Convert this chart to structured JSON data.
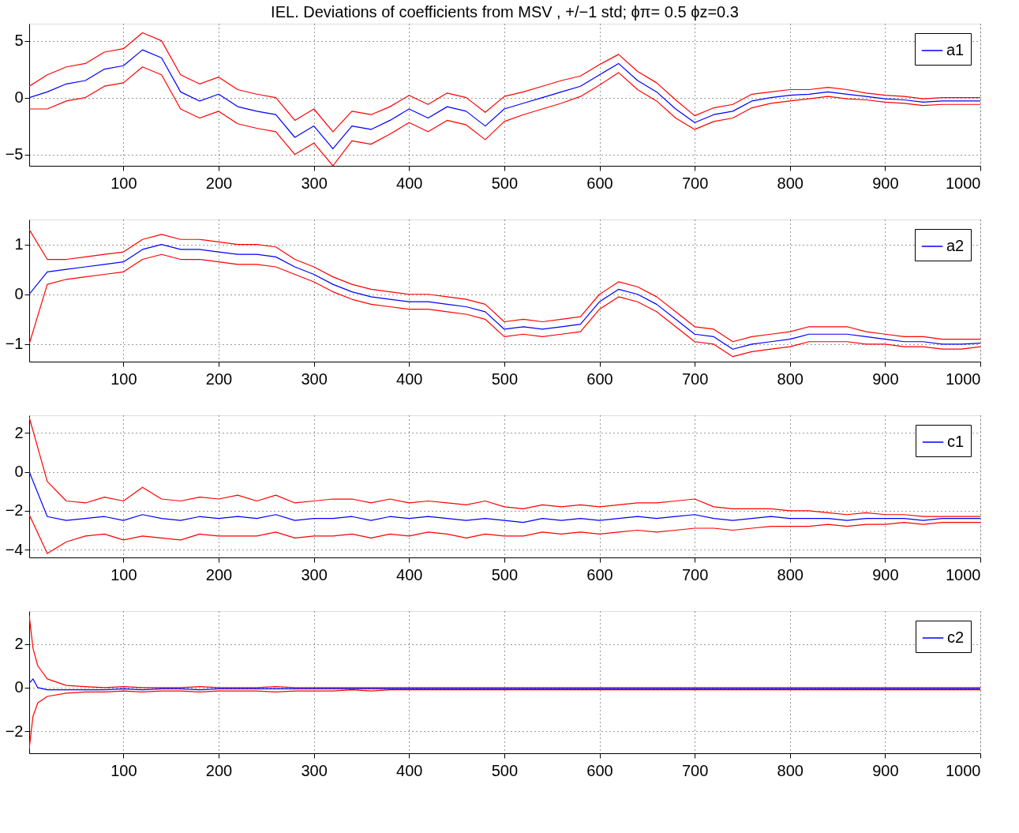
{
  "chart_data": [
    {
      "type": "line",
      "title": "IEL. Deviations of coefficients from MSV , +/−1 std; ϕπ= 0.5 ϕz=0.3",
      "x": [
        1,
        20,
        40,
        60,
        80,
        100,
        120,
        140,
        160,
        180,
        200,
        220,
        240,
        260,
        280,
        300,
        320,
        340,
        360,
        380,
        400,
        420,
        440,
        460,
        480,
        500,
        520,
        540,
        560,
        580,
        600,
        620,
        640,
        660,
        680,
        700,
        720,
        740,
        760,
        780,
        800,
        820,
        840,
        860,
        880,
        900,
        920,
        940,
        960,
        980,
        1000
      ],
      "xlim": [
        1,
        1000
      ],
      "xticks": [
        100,
        200,
        300,
        400,
        500,
        600,
        700,
        800,
        900,
        1000
      ],
      "ylim": [
        -6,
        6.5
      ],
      "yticks": [
        -5,
        0,
        5
      ],
      "grid": true,
      "legend": "top right",
      "line_style": "solid",
      "marker": "none",
      "series": [
        {
          "color": "#ff0000",
          "values": [
            1,
            2,
            2.7,
            3,
            4,
            4.3,
            5.7,
            5,
            2,
            1.2,
            1.8,
            0.7,
            0.3,
            0,
            -2,
            -1,
            -3,
            -1.2,
            -1.5,
            -0.8,
            0.2,
            -0.6,
            0.4,
            0,
            -1.3,
            0.1,
            0.5,
            1,
            1.5,
            1.9,
            2.9,
            3.8,
            2.3,
            1.3,
            -0.2,
            -1.6,
            -0.9,
            -0.6,
            0.3,
            0.5,
            0.7,
            0.7,
            0.9,
            0.7,
            0.4,
            0.2,
            0.1,
            -0.1,
            0,
            0,
            0
          ]
        },
        {
          "color": "#ff0000",
          "values": [
            -1,
            -1,
            -0.3,
            0,
            1,
            1.3,
            2.7,
            2,
            -1,
            -1.8,
            -1.2,
            -2.3,
            -2.7,
            -3,
            -5,
            -4,
            -6,
            -3.8,
            -4.1,
            -3.2,
            -2.2,
            -3,
            -2,
            -2.4,
            -3.7,
            -2.1,
            -1.5,
            -1,
            -0.5,
            0.1,
            1.1,
            2.2,
            0.7,
            -0.3,
            -1.8,
            -2.8,
            -2.1,
            -1.8,
            -0.9,
            -0.5,
            -0.3,
            -0.1,
            0.1,
            -0.1,
            -0.2,
            -0.4,
            -0.5,
            -0.7,
            -0.6,
            -0.6,
            -0.6
          ]
        },
        {
          "name": "a1",
          "color": "#0000ff",
          "values": [
            0,
            0.5,
            1.2,
            1.5,
            2.5,
            2.8,
            4.2,
            3.5,
            0.5,
            -0.3,
            0.3,
            -0.8,
            -1.2,
            -1.5,
            -3.5,
            -2.5,
            -4.5,
            -2.5,
            -2.8,
            -2.0,
            -1.0,
            -1.8,
            -0.8,
            -1.2,
            -2.5,
            -1.0,
            -0.5,
            0,
            0.5,
            1.0,
            2.0,
            3.0,
            1.5,
            0.5,
            -1.0,
            -2.2,
            -1.5,
            -1.2,
            -0.3,
            0,
            0.2,
            0.3,
            0.5,
            0.3,
            0.1,
            -0.1,
            -0.2,
            -0.4,
            -0.3,
            -0.3,
            -0.3
          ]
        }
      ]
    },
    {
      "type": "line",
      "x": [
        1,
        20,
        40,
        60,
        80,
        100,
        120,
        140,
        160,
        180,
        200,
        220,
        240,
        260,
        280,
        300,
        320,
        340,
        360,
        380,
        400,
        420,
        440,
        460,
        480,
        500,
        520,
        540,
        560,
        580,
        600,
        620,
        640,
        660,
        680,
        700,
        720,
        740,
        760,
        780,
        800,
        820,
        840,
        860,
        880,
        900,
        920,
        940,
        960,
        980,
        1000
      ],
      "xlim": [
        1,
        1000
      ],
      "xticks": [
        100,
        200,
        300,
        400,
        500,
        600,
        700,
        800,
        900,
        1000
      ],
      "ylim": [
        -1.35,
        1.5
      ],
      "yticks": [
        -1,
        0,
        1
      ],
      "grid": true,
      "legend": "top right",
      "line_style": "solid",
      "marker": "none",
      "series": [
        {
          "color": "#ff0000",
          "values": [
            1.3,
            0.7,
            0.7,
            0.75,
            0.8,
            0.85,
            1.1,
            1.2,
            1.1,
            1.1,
            1.05,
            1.0,
            1.0,
            0.95,
            0.7,
            0.55,
            0.35,
            0.2,
            0.1,
            0.05,
            0,
            0,
            -0.05,
            -0.1,
            -0.2,
            -0.55,
            -0.5,
            -0.55,
            -0.5,
            -0.45,
            0,
            0.25,
            0.15,
            -0.05,
            -0.35,
            -0.65,
            -0.7,
            -0.95,
            -0.85,
            -0.8,
            -0.75,
            -0.65,
            -0.65,
            -0.65,
            -0.75,
            -0.8,
            -0.85,
            -0.85,
            -0.9,
            -0.9,
            -0.9
          ]
        },
        {
          "color": "#ff0000",
          "values": [
            -1.0,
            0.2,
            0.3,
            0.35,
            0.4,
            0.45,
            0.7,
            0.8,
            0.7,
            0.7,
            0.65,
            0.6,
            0.6,
            0.55,
            0.4,
            0.25,
            0.05,
            -0.1,
            -0.2,
            -0.25,
            -0.3,
            -0.3,
            -0.35,
            -0.4,
            -0.5,
            -0.85,
            -0.8,
            -0.85,
            -0.8,
            -0.75,
            -0.3,
            -0.05,
            -0.15,
            -0.35,
            -0.65,
            -0.95,
            -1.0,
            -1.25,
            -1.15,
            -1.1,
            -1.05,
            -0.95,
            -0.95,
            -0.95,
            -1.0,
            -1.0,
            -1.05,
            -1.05,
            -1.1,
            -1.1,
            -1.05
          ]
        },
        {
          "name": "a2",
          "color": "#0000ff",
          "values": [
            0,
            0.45,
            0.5,
            0.55,
            0.6,
            0.65,
            0.9,
            1.0,
            0.9,
            0.9,
            0.85,
            0.8,
            0.8,
            0.75,
            0.55,
            0.4,
            0.2,
            0.05,
            -0.05,
            -0.1,
            -0.15,
            -0.15,
            -0.2,
            -0.25,
            -0.35,
            -0.7,
            -0.65,
            -0.7,
            -0.65,
            -0.6,
            -0.15,
            0.1,
            0.0,
            -0.2,
            -0.5,
            -0.8,
            -0.85,
            -1.1,
            -1.0,
            -0.95,
            -0.9,
            -0.8,
            -0.8,
            -0.8,
            -0.85,
            -0.9,
            -0.95,
            -0.95,
            -1.0,
            -1.0,
            -0.98
          ]
        }
      ]
    },
    {
      "type": "line",
      "x": [
        1,
        20,
        40,
        60,
        80,
        100,
        120,
        140,
        160,
        180,
        200,
        220,
        240,
        260,
        280,
        300,
        320,
        340,
        360,
        380,
        400,
        420,
        440,
        460,
        480,
        500,
        520,
        540,
        560,
        580,
        600,
        620,
        640,
        660,
        680,
        700,
        720,
        740,
        760,
        780,
        800,
        820,
        840,
        860,
        880,
        900,
        920,
        940,
        960,
        980,
        1000
      ],
      "xlim": [
        1,
        1000
      ],
      "xticks": [
        100,
        200,
        300,
        400,
        500,
        600,
        700,
        800,
        900,
        1000
      ],
      "ylim": [
        -4.4,
        2.9
      ],
      "yticks": [
        -4,
        -2,
        0,
        2
      ],
      "grid": true,
      "legend": "top right",
      "line_style": "solid",
      "marker": "none",
      "series": [
        {
          "color": "#ff0000",
          "values": [
            2.8,
            -0.5,
            -1.5,
            -1.6,
            -1.3,
            -1.5,
            -0.8,
            -1.4,
            -1.5,
            -1.3,
            -1.4,
            -1.2,
            -1.5,
            -1.2,
            -1.6,
            -1.5,
            -1.4,
            -1.4,
            -1.6,
            -1.4,
            -1.6,
            -1.5,
            -1.6,
            -1.7,
            -1.5,
            -1.8,
            -1.9,
            -1.7,
            -1.8,
            -1.7,
            -1.8,
            -1.7,
            -1.6,
            -1.6,
            -1.5,
            -1.4,
            -1.8,
            -1.9,
            -1.9,
            -1.9,
            -2.0,
            -2.0,
            -2.1,
            -2.2,
            -2.1,
            -2.2,
            -2.2,
            -2.3,
            -2.3,
            -2.3,
            -2.3
          ]
        },
        {
          "color": "#ff0000",
          "values": [
            -2.2,
            -4.2,
            -3.6,
            -3.3,
            -3.2,
            -3.5,
            -3.3,
            -3.4,
            -3.5,
            -3.2,
            -3.3,
            -3.3,
            -3.3,
            -3.1,
            -3.4,
            -3.3,
            -3.3,
            -3.2,
            -3.4,
            -3.2,
            -3.3,
            -3.1,
            -3.2,
            -3.4,
            -3.2,
            -3.3,
            -3.3,
            -3.1,
            -3.2,
            -3.1,
            -3.2,
            -3.1,
            -3.0,
            -3.1,
            -3.0,
            -2.9,
            -2.9,
            -3.0,
            -2.9,
            -2.8,
            -2.8,
            -2.8,
            -2.7,
            -2.8,
            -2.7,
            -2.7,
            -2.6,
            -2.7,
            -2.6,
            -2.6,
            -2.6
          ]
        },
        {
          "name": "c1",
          "color": "#0000ff",
          "values": [
            0,
            -2.3,
            -2.5,
            -2.4,
            -2.3,
            -2.5,
            -2.2,
            -2.4,
            -2.5,
            -2.3,
            -2.4,
            -2.3,
            -2.4,
            -2.2,
            -2.5,
            -2.4,
            -2.4,
            -2.3,
            -2.5,
            -2.3,
            -2.4,
            -2.3,
            -2.4,
            -2.5,
            -2.4,
            -2.5,
            -2.6,
            -2.4,
            -2.5,
            -2.4,
            -2.5,
            -2.4,
            -2.3,
            -2.4,
            -2.3,
            -2.2,
            -2.4,
            -2.5,
            -2.4,
            -2.3,
            -2.4,
            -2.4,
            -2.4,
            -2.5,
            -2.4,
            -2.4,
            -2.4,
            -2.5,
            -2.4,
            -2.4,
            -2.4
          ]
        }
      ]
    },
    {
      "type": "line",
      "x": [
        1,
        5,
        10,
        20,
        40,
        60,
        80,
        100,
        120,
        140,
        160,
        180,
        200,
        220,
        240,
        260,
        280,
        300,
        320,
        340,
        360,
        380,
        400,
        420,
        440,
        460,
        480,
        500,
        520,
        540,
        560,
        580,
        600,
        620,
        640,
        660,
        680,
        700,
        720,
        740,
        760,
        780,
        800,
        820,
        840,
        860,
        880,
        900,
        920,
        940,
        960,
        980,
        1000
      ],
      "xlim": [
        1,
        1000
      ],
      "xticks": [
        100,
        200,
        300,
        400,
        500,
        600,
        700,
        800,
        900,
        1000
      ],
      "ylim": [
        -3,
        3.5
      ],
      "yticks": [
        -2,
        0,
        2
      ],
      "grid": true,
      "legend": "top right",
      "line_style": "solid",
      "marker": "none",
      "series": [
        {
          "color": "#ff0000",
          "values": [
            3.3,
            1.8,
            1.0,
            0.4,
            0.1,
            0.05,
            0,
            0.05,
            0,
            0,
            0,
            0.05,
            0,
            0,
            0,
            0.05,
            0,
            0,
            0,
            0,
            0,
            0,
            0,
            0,
            0,
            0,
            0,
            0,
            0,
            0,
            0,
            0,
            0,
            0,
            0,
            0,
            0,
            0,
            0,
            0,
            0,
            0,
            0,
            0,
            0,
            0,
            0,
            0,
            0,
            0,
            0,
            0,
            0
          ]
        },
        {
          "color": "#ff0000",
          "values": [
            -2.8,
            -1.3,
            -0.7,
            -0.4,
            -0.25,
            -0.2,
            -0.2,
            -0.15,
            -0.2,
            -0.15,
            -0.15,
            -0.2,
            -0.15,
            -0.15,
            -0.15,
            -0.2,
            -0.15,
            -0.15,
            -0.15,
            -0.1,
            -0.15,
            -0.1,
            -0.1,
            -0.1,
            -0.1,
            -0.1,
            -0.1,
            -0.1,
            -0.1,
            -0.1,
            -0.1,
            -0.1,
            -0.1,
            -0.1,
            -0.1,
            -0.1,
            -0.1,
            -0.1,
            -0.1,
            -0.1,
            -0.1,
            -0.1,
            -0.1,
            -0.1,
            -0.1,
            -0.1,
            -0.1,
            -0.1,
            -0.1,
            -0.1,
            -0.1,
            -0.1,
            -0.1
          ]
        },
        {
          "name": "c2",
          "color": "#0000ff",
          "values": [
            0.2,
            0.4,
            0,
            -0.1,
            -0.1,
            -0.1,
            -0.1,
            -0.05,
            -0.1,
            -0.05,
            -0.05,
            -0.1,
            -0.05,
            -0.05,
            -0.05,
            -0.05,
            -0.05,
            -0.05,
            -0.05,
            -0.05,
            -0.05,
            -0.05,
            -0.05,
            -0.05,
            -0.05,
            -0.05,
            -0.05,
            -0.05,
            -0.05,
            -0.05,
            -0.05,
            -0.05,
            -0.05,
            -0.05,
            -0.05,
            -0.05,
            -0.05,
            -0.05,
            -0.05,
            -0.05,
            -0.05,
            -0.05,
            -0.05,
            -0.05,
            -0.05,
            -0.05,
            -0.05,
            -0.05,
            -0.05,
            -0.05,
            -0.05,
            -0.05,
            -0.05
          ]
        }
      ]
    }
  ]
}
